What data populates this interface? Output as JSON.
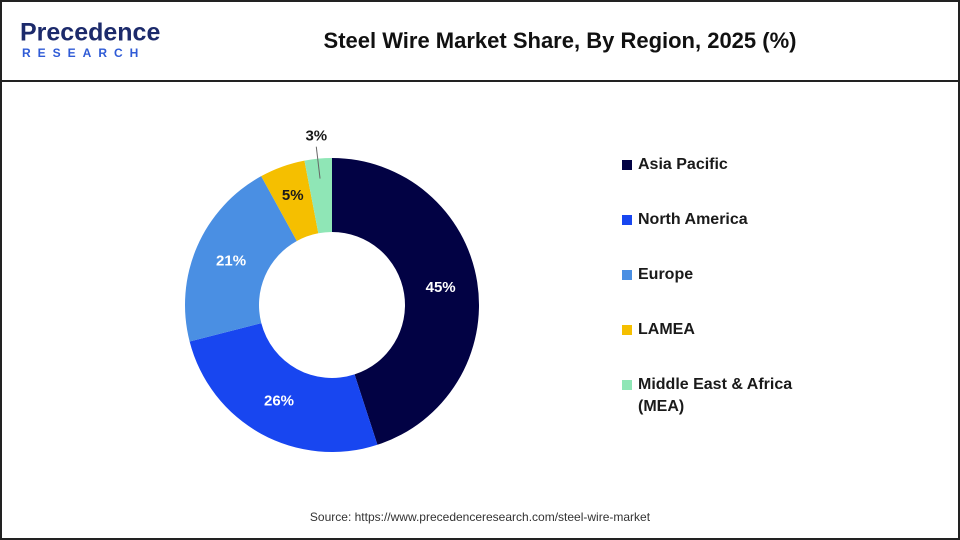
{
  "header": {
    "logo": "Precedence",
    "logo_sub": "RESEARCH"
  },
  "chart_data": {
    "type": "donut",
    "title": "Steel Wire Market Share, By Region, 2025 (%)",
    "categories": [
      "Asia Pacific",
      "North America",
      "Europe",
      "LAMEA",
      "Middle East & Africa (MEA)"
    ],
    "values": [
      45,
      26,
      21,
      5,
      3
    ],
    "value_labels": [
      "45%",
      "26%",
      "21%",
      "5%",
      "3%"
    ],
    "colors": [
      "#020244",
      "#1846f0",
      "#4a8fe3",
      "#f5bf00",
      "#8fe6b6"
    ],
    "label_colors": [
      "#ffffff",
      "#ffffff",
      "#ffffff",
      "#1a1a1a",
      "#1a1a1a"
    ],
    "legend": "right",
    "source": "Source: https://www.precedenceresearch.com/steel-wire-market"
  }
}
